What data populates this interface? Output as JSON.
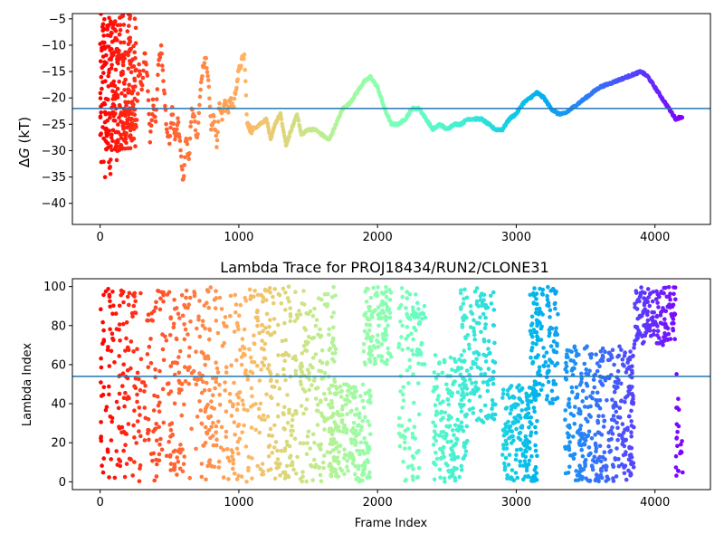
{
  "chart_data": [
    {
      "type": "scatter",
      "title": "",
      "xlabel": "",
      "ylabel": "ΔG (kT)",
      "ylabel_main": "Δ",
      "ylabel_italic": "G",
      "ylabel_unit": " (kT)",
      "xlim": [
        -200,
        4400
      ],
      "ylim": [
        -44,
        -4
      ],
      "xticks": [
        0,
        1000,
        2000,
        3000,
        4000
      ],
      "yticks": [
        -40,
        -35,
        -30,
        -25,
        -20,
        -15,
        -10,
        -5
      ],
      "hline": -22,
      "colormap": "rainbow (red at frame 0 to violet at frame 4200)",
      "trace": [
        [
          0,
          -10
        ],
        [
          15,
          -22
        ],
        [
          30,
          -4.5
        ],
        [
          45,
          -30
        ],
        [
          60,
          -18
        ],
        [
          75,
          -8
        ],
        [
          90,
          -28
        ],
        [
          105,
          -20
        ],
        [
          120,
          -32
        ],
        [
          140,
          -22
        ],
        [
          160,
          -24
        ],
        [
          180,
          -29
        ],
        [
          200,
          -23
        ],
        [
          220,
          -27
        ],
        [
          240,
          -21
        ],
        [
          260,
          -26
        ],
        [
          280,
          -14
        ],
        [
          300,
          -19
        ],
        [
          320,
          -11
        ],
        [
          340,
          -16
        ],
        [
          360,
          -28
        ],
        [
          380,
          -21
        ],
        [
          400,
          -25
        ],
        [
          420,
          -14
        ],
        [
          440,
          -10
        ],
        [
          460,
          -18
        ],
        [
          480,
          -26
        ],
        [
          500,
          -28
        ],
        [
          520,
          -22
        ],
        [
          540,
          -28
        ],
        [
          560,
          -24
        ],
        [
          580,
          -30
        ],
        [
          600,
          -36
        ],
        [
          620,
          -27
        ],
        [
          640,
          -32
        ],
        [
          660,
          -22
        ],
        [
          680,
          -24
        ],
        [
          700,
          -28
        ],
        [
          720,
          -20
        ],
        [
          740,
          -14
        ],
        [
          760,
          -12
        ],
        [
          780,
          -16
        ],
        [
          800,
          -26
        ],
        [
          820,
          -23
        ],
        [
          840,
          -29
        ],
        [
          860,
          -21
        ],
        [
          880,
          -24
        ],
        [
          900,
          -20
        ],
        [
          920,
          -23
        ],
        [
          940,
          -20
        ],
        [
          960,
          -22
        ],
        [
          980,
          -18
        ],
        [
          1000,
          -15
        ],
        [
          1020,
          -13
        ],
        [
          1040,
          -12
        ],
        [
          1060,
          -25
        ],
        [
          1080,
          -26
        ],
        [
          1100,
          -26
        ],
        [
          1150,
          -25
        ],
        [
          1200,
          -24
        ],
        [
          1230,
          -28
        ],
        [
          1260,
          -25
        ],
        [
          1300,
          -23
        ],
        [
          1340,
          -29
        ],
        [
          1380,
          -26
        ],
        [
          1420,
          -23
        ],
        [
          1450,
          -27
        ],
        [
          1500,
          -26
        ],
        [
          1550,
          -26
        ],
        [
          1600,
          -27
        ],
        [
          1650,
          -28
        ],
        [
          1700,
          -25
        ],
        [
          1750,
          -22
        ],
        [
          1800,
          -21
        ],
        [
          1850,
          -19
        ],
        [
          1900,
          -17
        ],
        [
          1950,
          -16
        ],
        [
          2000,
          -18
        ],
        [
          2050,
          -22
        ],
        [
          2100,
          -25
        ],
        [
          2150,
          -25
        ],
        [
          2200,
          -24
        ],
        [
          2250,
          -22
        ],
        [
          2300,
          -22
        ],
        [
          2350,
          -24
        ],
        [
          2400,
          -26
        ],
        [
          2450,
          -25
        ],
        [
          2500,
          -26
        ],
        [
          2550,
          -25
        ],
        [
          2600,
          -25
        ],
        [
          2650,
          -24
        ],
        [
          2700,
          -24
        ],
        [
          2750,
          -24
        ],
        [
          2800,
          -25
        ],
        [
          2850,
          -26
        ],
        [
          2900,
          -26
        ],
        [
          2950,
          -24
        ],
        [
          3000,
          -23
        ],
        [
          3050,
          -21
        ],
        [
          3100,
          -20
        ],
        [
          3150,
          -19
        ],
        [
          3200,
          -20
        ],
        [
          3250,
          -22
        ],
        [
          3300,
          -23
        ],
        [
          3350,
          -23
        ],
        [
          3400,
          -22
        ],
        [
          3450,
          -21
        ],
        [
          3500,
          -20
        ],
        [
          3550,
          -19
        ],
        [
          3600,
          -18
        ],
        [
          3650,
          -17.5
        ],
        [
          3700,
          -17
        ],
        [
          3750,
          -16.5
        ],
        [
          3800,
          -16
        ],
        [
          3850,
          -15.5
        ],
        [
          3900,
          -15
        ],
        [
          3950,
          -16
        ],
        [
          4000,
          -18
        ],
        [
          4050,
          -20
        ],
        [
          4100,
          -22
        ],
        [
          4150,
          -24
        ],
        [
          4200,
          -23.5
        ]
      ],
      "early_scatter_note": ""
    },
    {
      "type": "scatter",
      "title": "Lambda Trace for PROJ18434/RUN2/CLONE31",
      "xlabel": "Frame Index",
      "ylabel": "Lambda Index",
      "xlim": [
        -200,
        4400
      ],
      "ylim": [
        -4,
        104
      ],
      "xticks": [
        0,
        1000,
        2000,
        3000,
        4000
      ],
      "yticks": [
        0,
        20,
        40,
        60,
        80,
        100
      ],
      "hline": 54,
      "colormap": "rainbow (red at frame 0 to violet at frame 4200)",
      "bands": [
        {
          "x0": 0,
          "x1": 1550,
          "y0": 0,
          "y1": 100,
          "density": 0.55
        },
        {
          "x0": 1550,
          "x1": 1700,
          "y0": 0,
          "y1": 100,
          "density": 0.7
        },
        {
          "x0": 1650,
          "x1": 1950,
          "y0": 0,
          "y1": 50,
          "density": 1.4
        },
        {
          "x0": 1900,
          "x1": 2100,
          "y0": 60,
          "y1": 100,
          "density": 1.6
        },
        {
          "x0": 2150,
          "x1": 2300,
          "y0": 0,
          "y1": 100,
          "density": 0.6
        },
        {
          "x0": 2250,
          "x1": 2350,
          "y0": 60,
          "y1": 90,
          "density": 1.2
        },
        {
          "x0": 2400,
          "x1": 2650,
          "y0": 0,
          "y1": 65,
          "density": 1.1
        },
        {
          "x0": 2600,
          "x1": 2850,
          "y0": 30,
          "y1": 100,
          "density": 0.9
        },
        {
          "x0": 2900,
          "x1": 3150,
          "y0": 0,
          "y1": 50,
          "density": 1.6
        },
        {
          "x0": 3100,
          "x1": 3300,
          "y0": 40,
          "y1": 100,
          "density": 1.3
        },
        {
          "x0": 3350,
          "x1": 3850,
          "y0": 0,
          "y1": 70,
          "density": 1.2
        },
        {
          "x0": 3850,
          "x1": 4150,
          "y0": 70,
          "y1": 100,
          "density": 2.0
        },
        {
          "x0": 4150,
          "x1": 4200,
          "y0": 0,
          "y1": 60,
          "density": 0.8
        }
      ]
    }
  ]
}
